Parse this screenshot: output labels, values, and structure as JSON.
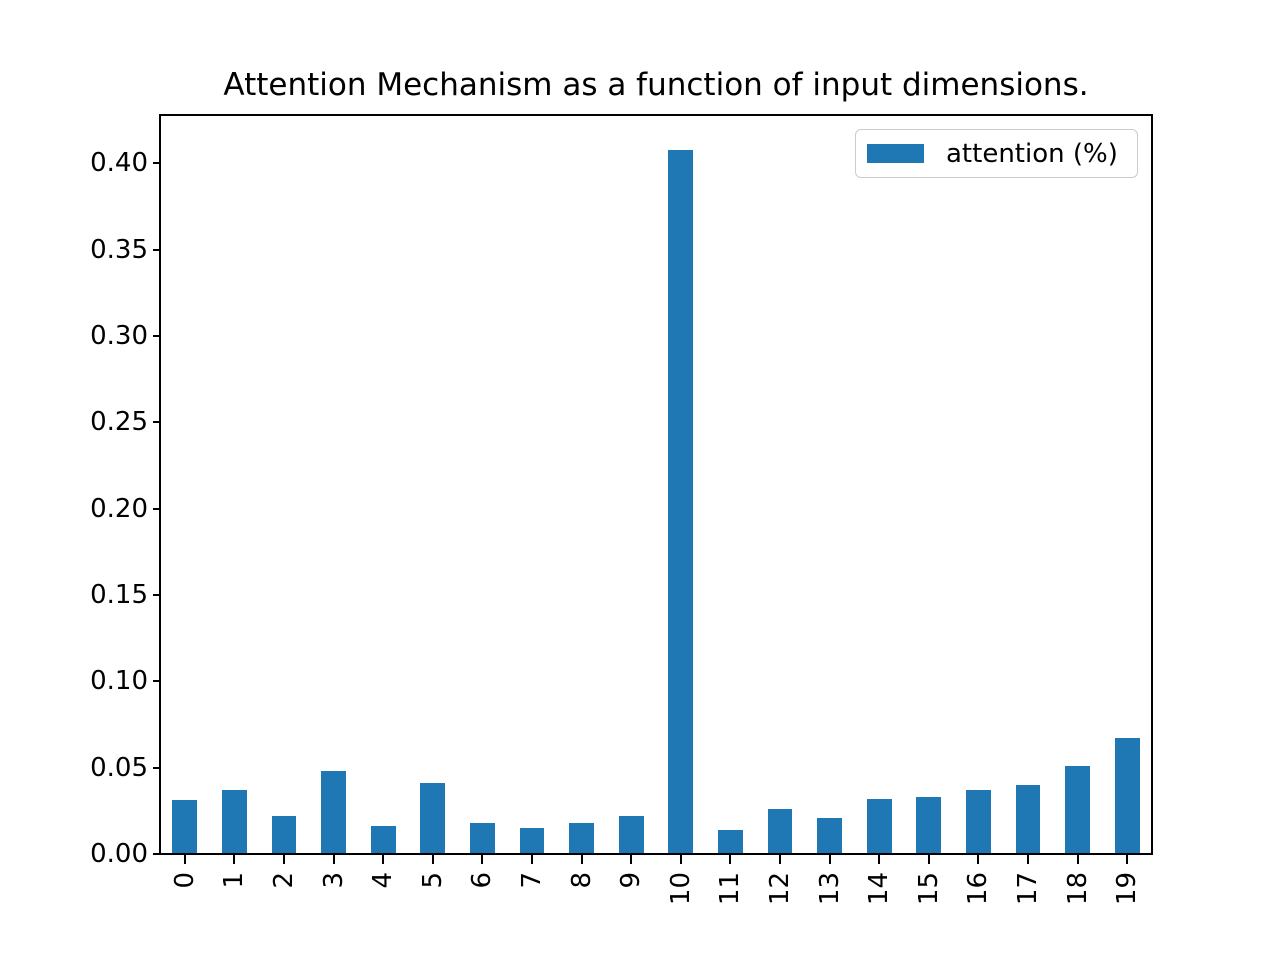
{
  "title": "Attention Mechanism as a function of input dimensions.",
  "legend": {
    "label": "attention (%)",
    "swatch_color": "#1f77b4"
  },
  "chart_data": {
    "type": "bar",
    "title": "Attention Mechanism as a function of input dimensions.",
    "series_name": "attention (%)",
    "categories": [
      "0",
      "1",
      "2",
      "3",
      "4",
      "5",
      "6",
      "7",
      "8",
      "9",
      "10",
      "11",
      "12",
      "13",
      "14",
      "15",
      "16",
      "17",
      "18",
      "19"
    ],
    "values": [
      0.031,
      0.037,
      0.022,
      0.048,
      0.016,
      0.041,
      0.018,
      0.015,
      0.018,
      0.022,
      0.408,
      0.014,
      0.026,
      0.021,
      0.032,
      0.033,
      0.037,
      0.04,
      0.051,
      0.067
    ],
    "xlabel": "",
    "ylabel": "",
    "ylim": [
      0,
      0.428
    ],
    "yticks": [
      0.0,
      0.05,
      0.1,
      0.15,
      0.2,
      0.25,
      0.3,
      0.35,
      0.4
    ],
    "ytick_labels": [
      "0.00",
      "0.05",
      "0.10",
      "0.15",
      "0.20",
      "0.25",
      "0.30",
      "0.35",
      "0.40"
    ],
    "bar_color": "#1f77b4",
    "grid": false,
    "legend_position": "upper right"
  }
}
